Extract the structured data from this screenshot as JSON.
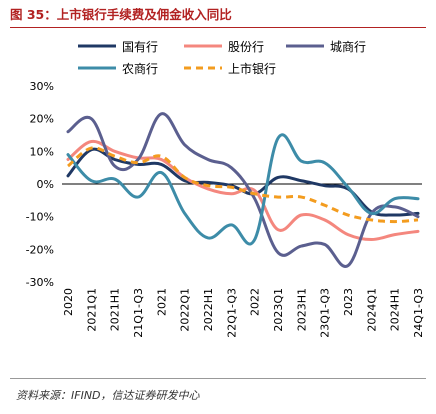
{
  "title": "图 35：上市银行手续费及佣金收入同比",
  "source": "资料来源：IFIND，信达证券研发中心",
  "chart_data": {
    "type": "line",
    "categories": [
      "2020",
      "2021Q1",
      "2021H1",
      "21Q1-Q3",
      "2021",
      "2022Q1",
      "2022H1",
      "22Q1-Q3",
      "2022",
      "2023Q1",
      "2023H1",
      "23Q1-Q3",
      "2023",
      "2024Q1",
      "2024H1",
      "24Q1-Q3"
    ],
    "ylim": [
      -30,
      30
    ],
    "yticks": [
      -30,
      -20,
      -10,
      0,
      10,
      20,
      30
    ],
    "ytick_labels": [
      "-30%",
      "-20%",
      "-10%",
      "0%",
      "10%",
      "20%",
      "30%"
    ],
    "legend_position": "top",
    "series": [
      {
        "name": "国有行",
        "color": "#1f3864",
        "dashed": false,
        "values": [
          2.5,
          10.5,
          7.5,
          6.0,
          6.0,
          1.0,
          0.5,
          -0.5,
          -3.0,
          2.0,
          1.0,
          -0.5,
          -1.5,
          -8.5,
          -9.5,
          -9.0
        ]
      },
      {
        "name": "股份行",
        "color": "#f4877e",
        "dashed": false,
        "values": [
          7.5,
          13.0,
          10.0,
          8.0,
          7.5,
          2.0,
          -1.5,
          -3.0,
          -2.0,
          -14.0,
          -9.5,
          -11.0,
          -15.5,
          -17.0,
          -15.5,
          -14.5
        ]
      },
      {
        "name": "城商行",
        "color": "#5b5f8f",
        "dashed": false,
        "values": [
          16.0,
          20.0,
          5.5,
          7.5,
          21.5,
          12.0,
          7.5,
          5.0,
          -4.5,
          -21.0,
          -19.0,
          -18.5,
          -25.0,
          -9.0,
          -7.0,
          -10.0
        ]
      },
      {
        "name": "农商行",
        "color": "#3d8ca8",
        "dashed": false,
        "values": [
          9.0,
          1.0,
          1.5,
          -4.0,
          3.5,
          -9.0,
          -16.5,
          -12.5,
          -17.0,
          14.0,
          7.0,
          6.5,
          -1.0,
          -9.0,
          -4.5,
          -4.5
        ]
      },
      {
        "name": "上市银行",
        "color": "#f39c1f",
        "dashed": true,
        "values": [
          5.5,
          11.0,
          8.5,
          6.5,
          8.5,
          2.0,
          -0.5,
          -1.0,
          -3.0,
          -4.0,
          -4.0,
          -6.5,
          -9.5,
          -11.0,
          -11.5,
          -11.0
        ]
      }
    ]
  }
}
